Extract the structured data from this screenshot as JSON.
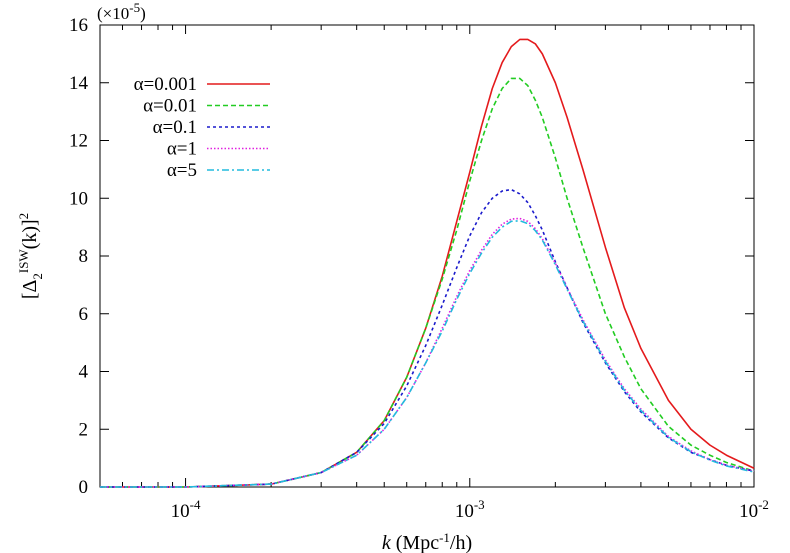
{
  "chart_data": {
    "type": "line",
    "title": "",
    "multiplier": {
      "prefix": "(×10",
      "exp": "-5",
      "suffix": ")"
    },
    "xlabel": {
      "italic": "k",
      "pre": " (Mpc",
      "exp": "-1",
      "post": "/h)"
    },
    "ylabel": {
      "open": "[Δ",
      "sub": "2",
      "sup": "ISW",
      "mid": "(k)]",
      "sup2": "2"
    },
    "xscale": "log",
    "xlim": [
      5e-05,
      0.01
    ],
    "ylim": [
      0,
      16
    ],
    "yticks": [
      0,
      2,
      4,
      6,
      8,
      10,
      12,
      14,
      16
    ],
    "xticks": [
      {
        "value": 0.0001,
        "base": "10",
        "exp": "-4"
      },
      {
        "value": 0.001,
        "base": "10",
        "exp": "-3"
      },
      {
        "value": 0.01,
        "base": "10",
        "exp": "-2"
      }
    ],
    "grid": false,
    "legend_position": "top-left",
    "series": [
      {
        "name": "α=0.001",
        "color": "#e41a1c",
        "dash": "",
        "width": 1.6,
        "x": [
          5e-05,
          0.0001,
          0.0002,
          0.0003,
          0.0004,
          0.0005,
          0.0006,
          0.0007,
          0.0008,
          0.0009,
          0.001,
          0.0011,
          0.0012,
          0.0013,
          0.0014,
          0.0015,
          0.0016,
          0.0017,
          0.0018,
          0.002,
          0.0022,
          0.0025,
          0.003,
          0.0035,
          0.004,
          0.005,
          0.006,
          0.007,
          0.008,
          0.01
        ],
        "y": [
          0.0,
          0.0,
          0.1,
          0.5,
          1.2,
          2.3,
          3.8,
          5.5,
          7.3,
          9.2,
          10.9,
          12.5,
          13.8,
          14.7,
          15.25,
          15.5,
          15.5,
          15.35,
          15.0,
          14.0,
          12.8,
          11.0,
          8.3,
          6.2,
          4.8,
          3.0,
          2.0,
          1.45,
          1.1,
          0.65
        ]
      },
      {
        "name": "α=0.01",
        "color": "#22cc22",
        "dash": "5,3",
        "width": 1.6,
        "x": [
          5e-05,
          0.0001,
          0.0002,
          0.0003,
          0.0004,
          0.0005,
          0.0006,
          0.0007,
          0.0008,
          0.0009,
          0.001,
          0.0011,
          0.0012,
          0.0013,
          0.0014,
          0.0015,
          0.0016,
          0.0017,
          0.0018,
          0.002,
          0.0022,
          0.0025,
          0.003,
          0.0035,
          0.004,
          0.005,
          0.006,
          0.007,
          0.008,
          0.01
        ],
        "y": [
          0.0,
          0.0,
          0.1,
          0.5,
          1.2,
          2.3,
          3.8,
          5.5,
          7.2,
          8.9,
          10.6,
          12.0,
          13.1,
          13.8,
          14.15,
          14.15,
          13.9,
          13.4,
          12.8,
          11.4,
          10.0,
          8.3,
          6.0,
          4.5,
          3.4,
          2.1,
          1.45,
          1.1,
          0.85,
          0.55
        ]
      },
      {
        "name": "α=0.1",
        "color": "#1a1acc",
        "dash": "3,3",
        "width": 1.6,
        "x": [
          5e-05,
          0.0001,
          0.0002,
          0.0003,
          0.0004,
          0.0005,
          0.0006,
          0.0007,
          0.0008,
          0.0009,
          0.001,
          0.0011,
          0.0012,
          0.0013,
          0.0014,
          0.0015,
          0.0016,
          0.0017,
          0.0018,
          0.002,
          0.0022,
          0.0025,
          0.003,
          0.0035,
          0.004,
          0.005,
          0.006,
          0.007,
          0.008,
          0.01
        ],
        "y": [
          0.0,
          0.0,
          0.1,
          0.5,
          1.2,
          2.2,
          3.5,
          4.9,
          6.3,
          7.6,
          8.7,
          9.5,
          10.0,
          10.25,
          10.3,
          10.15,
          9.85,
          9.4,
          8.9,
          7.8,
          6.9,
          5.7,
          4.3,
          3.3,
          2.6,
          1.7,
          1.2,
          0.95,
          0.75,
          0.55
        ]
      },
      {
        "name": "α=1",
        "color": "#e020e0",
        "dash": "1.5,2",
        "width": 1.6,
        "x": [
          5e-05,
          0.0001,
          0.0002,
          0.0003,
          0.0004,
          0.0005,
          0.0006,
          0.0007,
          0.0008,
          0.0009,
          0.001,
          0.0011,
          0.0012,
          0.0013,
          0.0014,
          0.0015,
          0.0016,
          0.0017,
          0.0018,
          0.002,
          0.0022,
          0.0025,
          0.003,
          0.0035,
          0.004,
          0.005,
          0.006,
          0.007,
          0.008,
          0.01
        ],
        "y": [
          0.0,
          0.0,
          0.1,
          0.5,
          1.1,
          2.0,
          3.1,
          4.3,
          5.5,
          6.6,
          7.5,
          8.2,
          8.75,
          9.1,
          9.28,
          9.3,
          9.2,
          8.95,
          8.6,
          7.75,
          6.9,
          5.8,
          4.4,
          3.4,
          2.7,
          1.75,
          1.25,
          0.95,
          0.75,
          0.55
        ]
      },
      {
        "name": "α=5",
        "color": "#22bbdd",
        "dash": "7,3,2,3",
        "width": 1.6,
        "x": [
          5e-05,
          0.0001,
          0.0002,
          0.0003,
          0.0004,
          0.0005,
          0.0006,
          0.0007,
          0.0008,
          0.0009,
          0.001,
          0.0011,
          0.0012,
          0.0013,
          0.0014,
          0.0015,
          0.0016,
          0.0017,
          0.0018,
          0.002,
          0.0022,
          0.0025,
          0.003,
          0.0035,
          0.004,
          0.005,
          0.006,
          0.007,
          0.008,
          0.01
        ],
        "y": [
          0.0,
          0.0,
          0.1,
          0.5,
          1.1,
          2.0,
          3.1,
          4.3,
          5.4,
          6.5,
          7.4,
          8.1,
          8.65,
          9.0,
          9.2,
          9.22,
          9.12,
          8.88,
          8.55,
          7.7,
          6.85,
          5.75,
          4.35,
          3.35,
          2.65,
          1.72,
          1.22,
          0.93,
          0.73,
          0.52
        ]
      }
    ]
  }
}
